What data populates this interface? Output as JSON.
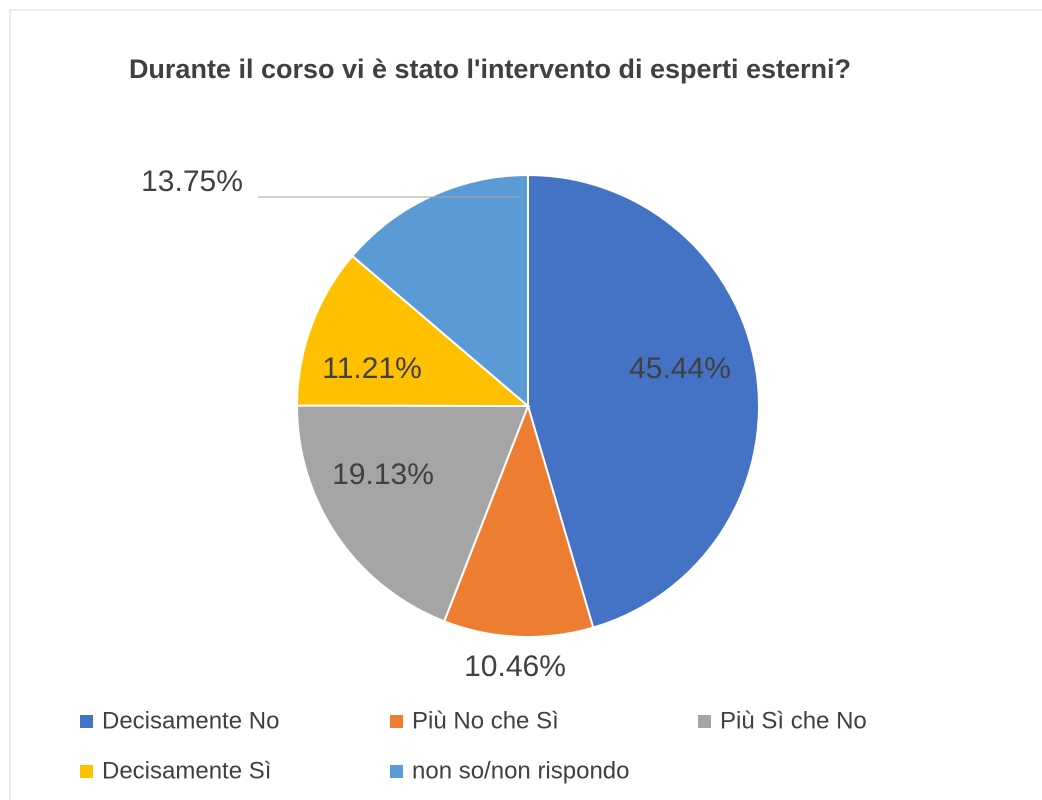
{
  "chart_data": {
    "type": "pie",
    "title": "Durante il corso vi è stato l'intervento di esperti esterni?",
    "categories": [
      "Decisamente No",
      "Più No che Sì",
      "Più Sì che No",
      "Decisamente Sì",
      "non so/non rispondo"
    ],
    "values": [
      45.44,
      10.46,
      19.13,
      11.21,
      13.75
    ],
    "value_labels": [
      "45.44%",
      "10.46%",
      "19.13%",
      "11.21%",
      "13.75%"
    ],
    "colors": [
      "#4472c4",
      "#ed7d31",
      "#a5a5a5",
      "#ffc000",
      "#5b9bd5"
    ],
    "legend": "bottom"
  }
}
